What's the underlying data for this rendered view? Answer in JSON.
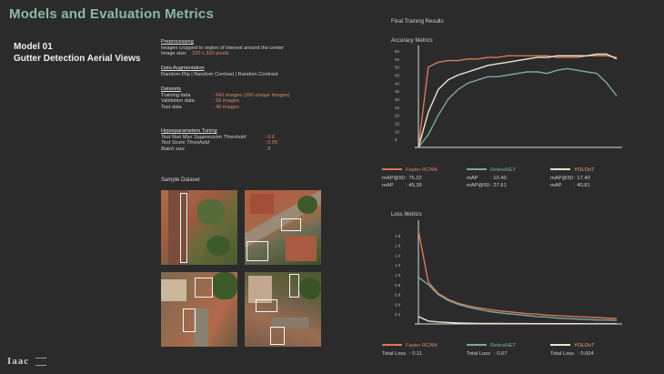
{
  "title": "Models and Evaluation Metrics",
  "model": {
    "line1": "Model 01",
    "line2": "Gutter Detection Aerial Views"
  },
  "preprocessing": {
    "heading": "Preprocessing",
    "line1": "Images cropped to region  of interest around the center",
    "size_label": "Image size:",
    "size_value": "320 x 320 pixels"
  },
  "augmentation": {
    "heading": "Data Augmentation",
    "line1": "Random Flip | Random Contrast | Random Contrast"
  },
  "datasets": {
    "heading": "Datasets",
    "rows": [
      {
        "label": "Training data",
        "value": ": 641 images (200 unique images)"
      },
      {
        "label": "Validation data",
        "value": ": 56 images"
      },
      {
        "label": "Test data",
        "value": ": 40 images"
      }
    ]
  },
  "tuning": {
    "heading": "Hyperparameters Tuning",
    "rows": [
      {
        "label": "Test Non Max Suppression Threshold",
        "value": ": 0.6"
      },
      {
        "label": "Test Score Threshold",
        "value": ": 0.05"
      },
      {
        "label": "Batch size",
        "value": ": 8"
      }
    ]
  },
  "sample_dataset_label": "Sample Dataset",
  "final_training_results": "Final Training Results",
  "colors": {
    "faster_rcnn": "#d9785a",
    "retinanet": "#7fa89a",
    "yolov7": "#f2e3d0",
    "axis": "#dcdcdc"
  },
  "accuracy": {
    "label": "Accuracy Metrics",
    "legend": [
      {
        "name": "Faster RCNN",
        "metric1": "mAP@50",
        "val1": ": 75.22",
        "metric2": "mAP",
        "val2": ": 45.39"
      },
      {
        "name": "RetinaNET",
        "metric1": "mAP",
        "val1": ": 10.40",
        "metric2": "mAP@50",
        "val2": ": 27.61"
      },
      {
        "name": "YOLOv7",
        "metric1": "mAP@50",
        "val1": ": 17.40",
        "metric2": "mAP",
        "val2": ": 40.81"
      }
    ]
  },
  "loss": {
    "label": "Loss Metrics",
    "legend": [
      {
        "name": "Faster RCNN",
        "metric": "Total Loss",
        "val": ": 0.11"
      },
      {
        "name": "RetinaNET",
        "metric": "Total Loss",
        "val": ": 0.07"
      },
      {
        "name": "YOLOv7",
        "metric": "Total Loss",
        "val": ": 0.004"
      }
    ]
  },
  "chart_data": [
    {
      "type": "line",
      "title": "Accuracy Metrics",
      "ylim": [
        0,
        60
      ],
      "yticks": [
        "5",
        "10",
        "15",
        "20",
        "25",
        "30",
        "35",
        "40",
        "45",
        "50",
        "55",
        "60"
      ],
      "x": [
        0,
        5,
        10,
        15,
        20,
        25,
        30,
        35,
        40,
        45,
        50,
        55,
        60,
        65,
        70,
        75,
        80,
        85,
        90,
        95,
        100
      ],
      "series": [
        {
          "name": "Faster RCNN",
          "values": [
            0,
            50,
            53,
            54,
            54,
            55,
            55,
            56,
            56,
            57,
            57,
            57,
            57,
            57,
            56,
            56,
            56,
            57,
            57,
            57,
            56
          ]
        },
        {
          "name": "RetinaNET",
          "values": [
            0,
            8,
            20,
            30,
            36,
            40,
            42,
            44,
            44,
            45,
            46,
            47,
            47,
            46,
            48,
            49,
            48,
            47,
            46,
            40,
            32
          ]
        },
        {
          "name": "YOLOv7",
          "values": [
            0,
            22,
            36,
            42,
            45,
            47,
            49,
            51,
            52,
            53,
            54,
            55,
            56,
            56,
            57,
            57,
            57,
            57,
            58,
            58,
            55
          ]
        }
      ]
    },
    {
      "type": "line",
      "title": "Loss Metrics",
      "ylim": [
        0,
        2.0
      ],
      "yticks": [
        "0.2",
        "0.4",
        "0.6",
        "0.8",
        "1.0",
        "1.2",
        "1.4",
        "1.6",
        "1.8"
      ],
      "x": [
        0,
        5,
        10,
        15,
        20,
        25,
        30,
        35,
        40,
        45,
        50,
        55,
        60,
        65,
        70,
        75,
        80,
        85,
        90,
        95,
        100
      ],
      "series": [
        {
          "name": "Faster RCNN",
          "values": [
            1.9,
            0.85,
            0.62,
            0.5,
            0.42,
            0.37,
            0.33,
            0.3,
            0.27,
            0.25,
            0.23,
            0.21,
            0.2,
            0.18,
            0.17,
            0.16,
            0.15,
            0.14,
            0.13,
            0.12,
            0.11
          ]
        },
        {
          "name": "RetinaNET",
          "values": [
            0.95,
            0.8,
            0.6,
            0.48,
            0.4,
            0.34,
            0.3,
            0.26,
            0.23,
            0.21,
            0.19,
            0.17,
            0.15,
            0.14,
            0.12,
            0.11,
            0.1,
            0.09,
            0.08,
            0.08,
            0.07
          ]
        },
        {
          "name": "YOLOv7",
          "values": [
            0.15,
            0.06,
            0.04,
            0.03,
            0.02,
            0.015,
            0.012,
            0.01,
            0.009,
            0.008,
            0.007,
            0.007,
            0.006,
            0.006,
            0.005,
            0.005,
            0.005,
            0.004,
            0.004,
            0.004,
            0.004
          ]
        }
      ]
    }
  ]
}
